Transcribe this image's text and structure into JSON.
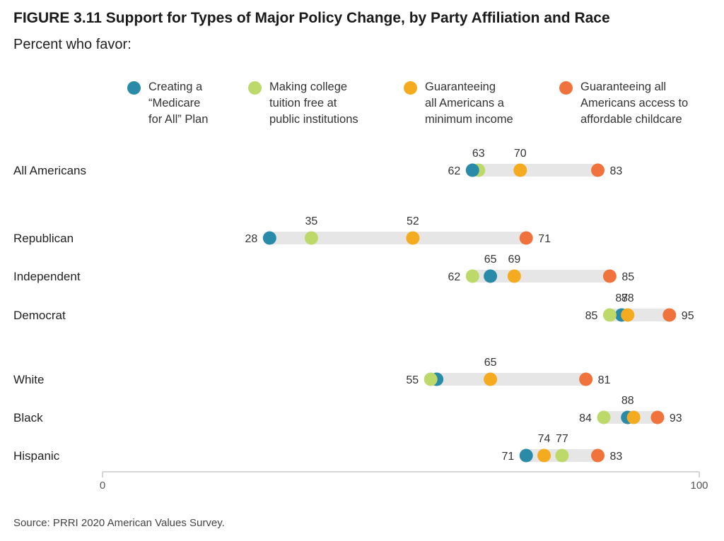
{
  "title": "FIGURE 3.11  Support for Types of Major Policy Change, by Party Affiliation and Race",
  "subtitle": "Percent who favor:",
  "source": "Source: PRRI 2020 American Values Survey.",
  "chart_data": {
    "type": "dot",
    "xlim": [
      0,
      100
    ],
    "x_ticks": [
      "0",
      "100"
    ],
    "legend_placement": "top",
    "series": [
      {
        "name": "Creating a\n“Medicare\nfor All” Plan",
        "color": "#2a8ba8"
      },
      {
        "name": "Making college\ntuition free at\npublic institutions",
        "color": "#bcd96a"
      },
      {
        "name": "Guaranteeing\nall Americans a\nminimum income",
        "color": "#f5ab1f"
      },
      {
        "name": "Guaranteeing all\nAmericans access to\naffordable childcare",
        "color": "#f0733e"
      }
    ],
    "groups": [
      {
        "label": "All Americans",
        "values": [
          62,
          63,
          70,
          83
        ]
      },
      {
        "label": "Republican",
        "values": [
          28,
          35,
          52,
          71
        ]
      },
      {
        "label": "Independent",
        "values": [
          65,
          62,
          69,
          85
        ]
      },
      {
        "label": "Democrat",
        "values": [
          87,
          85,
          88,
          95
        ]
      },
      {
        "label": "White",
        "values": [
          56,
          55,
          65,
          81
        ]
      },
      {
        "label": "Black",
        "values": [
          88,
          84,
          89,
          93
        ]
      },
      {
        "label": "Hispanic",
        "values": [
          71,
          77,
          74,
          83
        ]
      }
    ],
    "value_labels": [
      {
        "label": "All Americans",
        "left": "62",
        "right": "83",
        "above": [
          "63",
          "70"
        ]
      },
      {
        "label": "Republican",
        "left": "28",
        "right": "71",
        "above": [
          "35",
          "52"
        ]
      },
      {
        "label": "Independent",
        "left": "62",
        "right": "85",
        "above": [
          "65",
          "69"
        ]
      },
      {
        "label": "Democrat",
        "left": "85",
        "right": "95",
        "above": [
          "87",
          "88"
        ]
      },
      {
        "label": "White",
        "left": "55",
        "right": "81",
        "above": [
          "65"
        ]
      },
      {
        "label": "Black",
        "left": "84",
        "right": "93",
        "above": [
          "88"
        ]
      },
      {
        "label": "Hispanic",
        "left": "71",
        "right": "83",
        "above": [
          "74",
          "77"
        ]
      }
    ]
  }
}
